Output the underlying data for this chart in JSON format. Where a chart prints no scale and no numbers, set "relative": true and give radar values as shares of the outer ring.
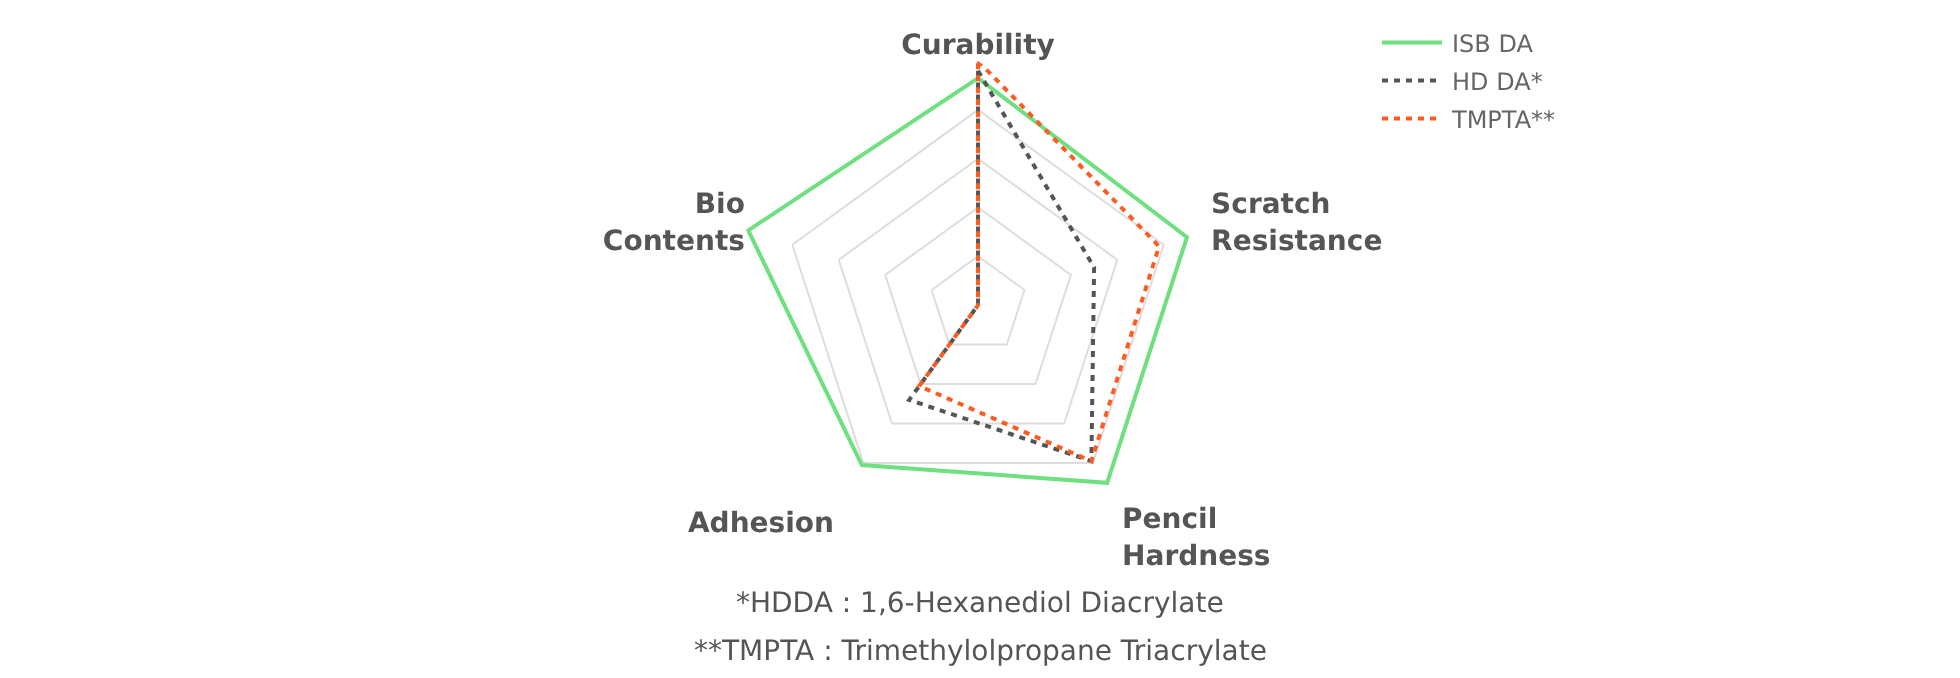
{
  "chart_data": {
    "type": "radar",
    "relative": true,
    "categories": [
      "Curability",
      "Scratch\nResistance",
      "Pencil\nHardness",
      "Adhesion",
      "Bio\nContents"
    ],
    "series": [
      {
        "name": "ISB DA",
        "color": "#6ee07f",
        "line_style": "solid",
        "values": [
          0.93,
          0.9,
          0.9,
          0.81,
          0.99
        ]
      },
      {
        "name": "HD DA*",
        "color": "#555555",
        "line_style": "dotted",
        "values": [
          0.96,
          0.5,
          0.79,
          0.48,
          0
        ]
      },
      {
        "name": "TMPTA**",
        "color": "#ff5a1f",
        "line_style": "dotted",
        "values": [
          1,
          0.78,
          0.79,
          0.41,
          0
        ]
      }
    ],
    "marker": "none",
    "legend": "top right",
    "grid": true,
    "annotations": [
      "*HDDA : 1,6-Hexanediol Diacrylate",
      "**TMPTA : Trimethylolpropane Triacrylate"
    ]
  }
}
